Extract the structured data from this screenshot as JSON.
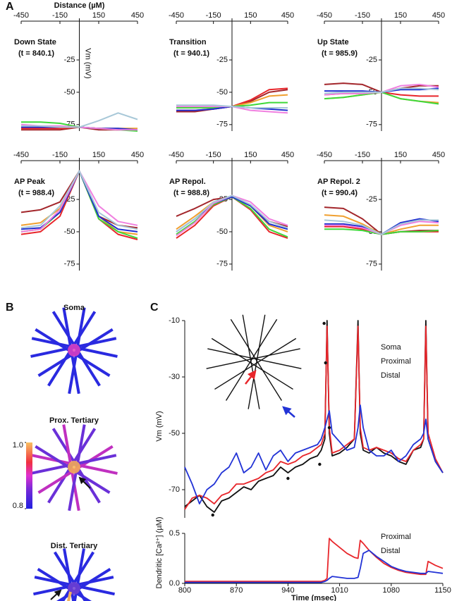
{
  "chart_data": [
    {
      "type": "line",
      "panel": "A",
      "title": "Down State",
      "subtitle": "(t = 840.1)",
      "xlabel": "Distance (µM)",
      "ylabel": "Vm (mV)",
      "x": [
        -450,
        -300,
        -150,
        0,
        150,
        300,
        450
      ],
      "xlim": [
        -450,
        450
      ],
      "xticks": [
        -450,
        -150,
        150,
        450
      ],
      "ylim": [
        -80,
        5
      ],
      "yticks": [
        -25,
        -50,
        -75
      ],
      "series": [
        {
          "color": "#a3262b",
          "values": [
            -79,
            -79,
            -79,
            -77,
            -79,
            -79,
            -79
          ]
        },
        {
          "color": "#e8262b",
          "values": [
            -78,
            -78,
            -78,
            -77,
            -78,
            -79,
            -79
          ]
        },
        {
          "color": "#f0a030",
          "values": [
            -77,
            -77,
            -77,
            -77,
            -78,
            -78,
            -78
          ]
        },
        {
          "color": "#3ed83a",
          "values": [
            -73,
            -73,
            -74,
            -77,
            -78,
            -79,
            -80
          ]
        },
        {
          "color": "#2030d0",
          "values": [
            -77,
            -77,
            -77,
            -77,
            -78,
            -78,
            -79
          ]
        },
        {
          "color": "#f080e0",
          "values": [
            -75,
            -76,
            -76,
            -77,
            -78,
            -79,
            -79
          ]
        },
        {
          "color": "#a8c8d8",
          "values": [
            -76,
            -76,
            -77,
            -77,
            -72,
            -66,
            -71
          ]
        }
      ]
    },
    {
      "type": "line",
      "title": "Transition",
      "subtitle": "(t = 940.1)",
      "x": [
        -450,
        -300,
        -150,
        0,
        150,
        300,
        450
      ],
      "xlim": [
        -450,
        450
      ],
      "xticks": [
        -450,
        -150,
        150,
        450
      ],
      "ylim": [
        -80,
        5
      ],
      "yticks": [
        -25,
        -50,
        -75
      ],
      "series": [
        {
          "color": "#a3262b",
          "values": [
            -65,
            -65,
            -63,
            -61,
            -57,
            -50,
            -48
          ]
        },
        {
          "color": "#e8262b",
          "values": [
            -64,
            -64,
            -63,
            -61,
            -56,
            -48,
            -47
          ]
        },
        {
          "color": "#f0a030",
          "values": [
            -62,
            -62,
            -62,
            -61,
            -58,
            -53,
            -52
          ]
        },
        {
          "color": "#3ed83a",
          "values": [
            -62,
            -62,
            -62,
            -61,
            -60,
            -58,
            -58
          ]
        },
        {
          "color": "#2030d0",
          "values": [
            -64,
            -64,
            -63,
            -61,
            -62,
            -63,
            -64
          ]
        },
        {
          "color": "#f080e0",
          "values": [
            -61,
            -61,
            -61,
            -61,
            -64,
            -65,
            -66
          ]
        },
        {
          "color": "#a8c8d8",
          "values": [
            -60,
            -60,
            -60,
            -61,
            -62,
            -62,
            -62
          ]
        }
      ]
    },
    {
      "type": "line",
      "title": "Up State",
      "subtitle": "(t = 985.9)",
      "x": [
        -450,
        -300,
        -150,
        0,
        150,
        300,
        450
      ],
      "xlim": [
        -450,
        450
      ],
      "xticks": [
        -450,
        -150,
        150,
        450
      ],
      "ylim": [
        -80,
        5
      ],
      "yticks": [
        -25,
        -50,
        -75
      ],
      "series": [
        {
          "color": "#a3262b",
          "values": [
            -44,
            -43,
            -44,
            -50,
            -47,
            -45,
            -45
          ]
        },
        {
          "color": "#e8262b",
          "values": [
            -52,
            -51,
            -51,
            -50,
            -52,
            -53,
            -53
          ]
        },
        {
          "color": "#f0a030",
          "values": [
            -55,
            -54,
            -52,
            -50,
            -55,
            -57,
            -58
          ]
        },
        {
          "color": "#3ed83a",
          "values": [
            -55,
            -54,
            -52,
            -50,
            -55,
            -57,
            -59
          ]
        },
        {
          "color": "#2030d0",
          "values": [
            -49,
            -49,
            -49,
            -50,
            -48,
            -48,
            -47
          ]
        },
        {
          "color": "#f080e0",
          "values": [
            -52,
            -51,
            -51,
            -50,
            -45,
            -44,
            -46
          ]
        },
        {
          "color": "#a8c8d8",
          "values": [
            -51,
            -50,
            -50,
            -50,
            -47,
            -47,
            -48
          ]
        }
      ]
    },
    {
      "type": "line",
      "title": "AP Peak",
      "subtitle": "(t = 988.4)",
      "x": [
        -450,
        -300,
        -150,
        0,
        150,
        300,
        450
      ],
      "xlim": [
        -450,
        450
      ],
      "xticks": [
        -450,
        -150,
        150,
        450
      ],
      "ylim": [
        -80,
        5
      ],
      "yticks": [
        -25,
        -50,
        -75
      ],
      "series": [
        {
          "color": "#a3262b",
          "values": [
            -35,
            -33,
            -27,
            -3,
            -38,
            -45,
            -47
          ]
        },
        {
          "color": "#e8262b",
          "values": [
            -52,
            -50,
            -38,
            -3,
            -40,
            -52,
            -56
          ]
        },
        {
          "color": "#f0a030",
          "values": [
            -45,
            -43,
            -32,
            -3,
            -38,
            -50,
            -52
          ]
        },
        {
          "color": "#3ed83a",
          "values": [
            -50,
            -48,
            -35,
            -3,
            -40,
            -50,
            -55
          ]
        },
        {
          "color": "#2030d0",
          "values": [
            -48,
            -47,
            -35,
            -3,
            -38,
            -48,
            -50
          ]
        },
        {
          "color": "#f080e0",
          "values": [
            -50,
            -48,
            -33,
            -3,
            -30,
            -42,
            -45
          ]
        },
        {
          "color": "#a8c8d8",
          "values": [
            -47,
            -45,
            -30,
            -3,
            -35,
            -45,
            -48
          ]
        }
      ]
    },
    {
      "type": "line",
      "title": "AP Repol.",
      "subtitle": "(t = 988.8)",
      "x": [
        -450,
        -300,
        -150,
        0,
        150,
        300,
        450
      ],
      "xlim": [
        -450,
        450
      ],
      "xticks": [
        -450,
        -150,
        150,
        450
      ],
      "ylim": [
        -80,
        5
      ],
      "yticks": [
        -25,
        -50,
        -75
      ],
      "series": [
        {
          "color": "#a3262b",
          "values": [
            -38,
            -32,
            -25,
            -23,
            -30,
            -42,
            -46
          ]
        },
        {
          "color": "#e8262b",
          "values": [
            -55,
            -45,
            -30,
            -23,
            -33,
            -50,
            -55
          ]
        },
        {
          "color": "#f0a030",
          "values": [
            -48,
            -38,
            -27,
            -23,
            -30,
            -45,
            -50
          ]
        },
        {
          "color": "#3ed83a",
          "values": [
            -52,
            -42,
            -29,
            -23,
            -32,
            -48,
            -54
          ]
        },
        {
          "color": "#2030d0",
          "values": [
            -50,
            -40,
            -28,
            -23,
            -30,
            -44,
            -48
          ]
        },
        {
          "color": "#f080e0",
          "values": [
            -53,
            -43,
            -28,
            -22,
            -27,
            -40,
            -45
          ]
        },
        {
          "color": "#a8c8d8",
          "values": [
            -50,
            -40,
            -27,
            -22,
            -29,
            -42,
            -47
          ]
        }
      ]
    },
    {
      "type": "line",
      "title": "AP Repol. 2",
      "subtitle": "(t = 990.4)",
      "x": [
        -450,
        -300,
        -150,
        0,
        150,
        300,
        450
      ],
      "xlim": [
        -450,
        450
      ],
      "xticks": [
        -450,
        -150,
        150,
        450
      ],
      "ylim": [
        -80,
        5
      ],
      "yticks": [
        -25,
        -50,
        -75
      ],
      "series": [
        {
          "color": "#a3262b",
          "values": [
            -31,
            -32,
            -40,
            -52,
            -50,
            -49,
            -49
          ]
        },
        {
          "color": "#e8262b",
          "values": [
            -46,
            -46,
            -48,
            -52,
            -50,
            -50,
            -50
          ]
        },
        {
          "color": "#f0a030",
          "values": [
            -37,
            -38,
            -44,
            -52,
            -48,
            -45,
            -45
          ]
        },
        {
          "color": "#3ed83a",
          "values": [
            -48,
            -48,
            -49,
            -52,
            -50,
            -50,
            -49
          ]
        },
        {
          "color": "#2030d0",
          "values": [
            -44,
            -44,
            -46,
            -52,
            -43,
            -40,
            -42
          ]
        },
        {
          "color": "#f080e0",
          "values": [
            -45,
            -45,
            -47,
            -52,
            -45,
            -42,
            -43
          ]
        },
        {
          "color": "#a8c8d8",
          "values": [
            -41,
            -42,
            -45,
            -52,
            -44,
            -41,
            -41
          ]
        }
      ]
    },
    {
      "type": "line",
      "panel": "C",
      "ylabel": "Vm (mV)",
      "legend": "upper right",
      "x": [
        800,
        810,
        820,
        830,
        840,
        850,
        860,
        870,
        880,
        890,
        900,
        910,
        920,
        930,
        940,
        950,
        960,
        970,
        980,
        985,
        990,
        993,
        996,
        1000,
        1010,
        1020,
        1030,
        1035,
        1038,
        1042,
        1050,
        1060,
        1070,
        1080,
        1090,
        1100,
        1110,
        1120,
        1124,
        1127,
        1130,
        1140,
        1150
      ],
      "xlim": [
        800,
        1150
      ],
      "ylim": [
        -80,
        -10
      ],
      "yticks": [
        -10,
        -30,
        -50,
        -70
      ],
      "series": [
        {
          "name": "Soma",
          "color": "#111111",
          "values": [
            -76,
            -74,
            -72,
            -76,
            -78,
            -74,
            -73,
            -71,
            -69,
            -70,
            -67,
            -66,
            -65,
            -62,
            -64,
            -62,
            -61,
            -59,
            -58,
            -56,
            -52,
            -10,
            -50,
            -58,
            -57,
            -55,
            -52,
            -10,
            -50,
            -56,
            -57,
            -55,
            -57,
            -58,
            -60,
            -61,
            -56,
            -55,
            -52,
            -10,
            -52,
            -60,
            -64
          ]
        },
        {
          "name": "Proximal",
          "color": "#e8262b",
          "values": [
            -77,
            -73,
            -72,
            -73,
            -75,
            -72,
            -71,
            -68,
            -68,
            -67,
            -66,
            -64,
            -63,
            -60,
            -61,
            -60,
            -58,
            -57,
            -55,
            -54,
            -50,
            -12,
            -48,
            -57,
            -56,
            -54,
            -52,
            -12,
            -48,
            -55,
            -56,
            -55,
            -56,
            -57,
            -59,
            -60,
            -56,
            -54,
            -52,
            -12,
            -50,
            -59,
            -64
          ]
        },
        {
          "name": "Distal",
          "color": "#2233d6",
          "values": [
            -62,
            -68,
            -75,
            -70,
            -68,
            -64,
            -62,
            -57,
            -64,
            -62,
            -57,
            -63,
            -58,
            -56,
            -60,
            -57,
            -56,
            -55,
            -54,
            -52,
            -48,
            -45,
            -42,
            -50,
            -53,
            -56,
            -55,
            -48,
            -40,
            -48,
            -56,
            -58,
            -58,
            -56,
            -60,
            -58,
            -54,
            -52,
            -50,
            -45,
            -52,
            -60,
            -64
          ]
        }
      ],
      "points": {
        "color": "#111111",
        "x": [
          838,
          940,
          983,
          996,
          991,
          989
        ],
        "y": [
          -79,
          -66,
          -61,
          -48,
          -25,
          -11
        ]
      }
    },
    {
      "type": "line",
      "ylabel": "Dendritic [Ca²⁺] (µM)",
      "xlabel": "Time (msec)",
      "legend": "upper right",
      "x": [
        800,
        810,
        820,
        830,
        840,
        850,
        860,
        870,
        880,
        890,
        900,
        910,
        920,
        930,
        940,
        950,
        960,
        970,
        980,
        985,
        990,
        993,
        996,
        1000,
        1010,
        1020,
        1030,
        1035,
        1038,
        1042,
        1050,
        1060,
        1070,
        1080,
        1090,
        1100,
        1110,
        1120,
        1124,
        1127,
        1130,
        1140,
        1150
      ],
      "xlim": [
        800,
        1150
      ],
      "xticks": [
        800,
        870,
        940,
        1010,
        1080,
        1150
      ],
      "ylim": [
        0,
        0.5
      ],
      "yticks": [
        {
          "value": 0,
          "label": "0.0"
        },
        0.5
      ],
      "series": [
        {
          "name": "Proximal",
          "color": "#e8262b",
          "values": [
            0.02,
            0.02,
            0.02,
            0.02,
            0.02,
            0.02,
            0.02,
            0.02,
            0.02,
            0.02,
            0.02,
            0.02,
            0.02,
            0.02,
            0.02,
            0.02,
            0.02,
            0.02,
            0.02,
            0.02,
            0.03,
            0.05,
            0.45,
            0.42,
            0.36,
            0.3,
            0.26,
            0.25,
            0.43,
            0.4,
            0.33,
            0.26,
            0.2,
            0.16,
            0.13,
            0.11,
            0.1,
            0.09,
            0.09,
            0.09,
            0.22,
            0.18,
            0.15
          ]
        },
        {
          "name": "Distal",
          "color": "#2233d6",
          "values": [
            0.01,
            0.01,
            0.01,
            0.01,
            0.01,
            0.01,
            0.01,
            0.01,
            0.01,
            0.01,
            0.01,
            0.01,
            0.01,
            0.01,
            0.01,
            0.01,
            0.01,
            0.01,
            0.01,
            0.01,
            0.02,
            0.03,
            0.05,
            0.07,
            0.06,
            0.05,
            0.05,
            0.06,
            0.15,
            0.3,
            0.33,
            0.27,
            0.22,
            0.17,
            0.14,
            0.12,
            0.11,
            0.1,
            0.1,
            0.1,
            0.12,
            0.11,
            0.1
          ]
        }
      ]
    }
  ],
  "panel_b": {
    "panel": "B",
    "titles": [
      "Soma",
      "Prox. Tertiary",
      "Dist. Tertiary"
    ],
    "colorbar": {
      "lim": [
        0.8,
        1
      ],
      "ticks": [
        {
          "value": 1,
          "label": "1.0"
        },
        0.8
      ]
    }
  }
}
